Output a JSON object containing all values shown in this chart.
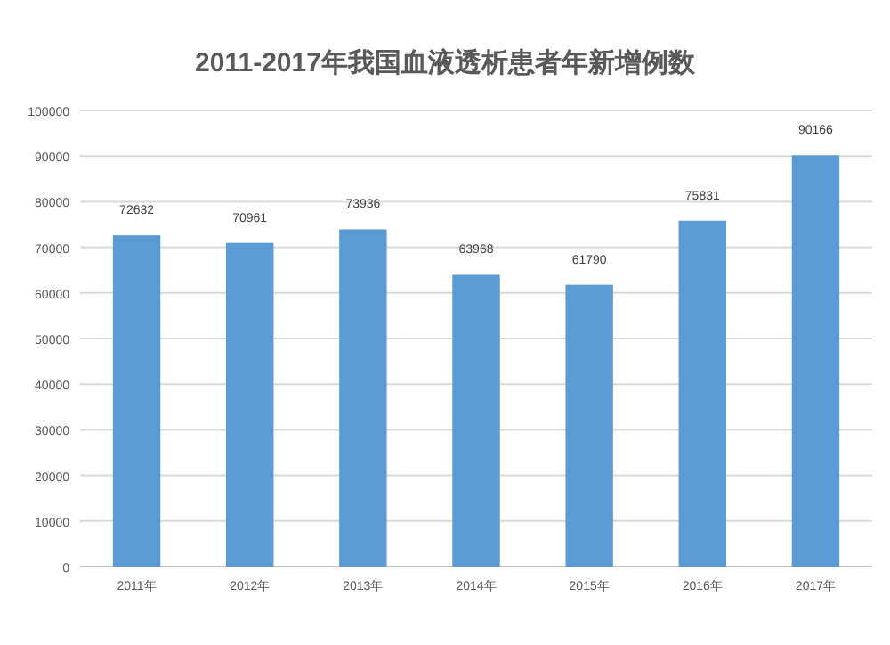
{
  "chart_data": {
    "type": "bar",
    "title": "2011-2017年我国血液透析患者年新增例数",
    "categories": [
      "2011年",
      "2012年",
      "2013年",
      "2014年",
      "2015年",
      "2016年",
      "2017年"
    ],
    "values": [
      72632,
      70961,
      73936,
      63968,
      61790,
      75831,
      90166
    ],
    "color": "#5b9bd5",
    "ylim": [
      0,
      100000
    ],
    "yticks": [
      0,
      10000,
      20000,
      30000,
      40000,
      50000,
      60000,
      70000,
      80000,
      90000,
      100000
    ],
    "grid": "y",
    "data_labels": true
  }
}
